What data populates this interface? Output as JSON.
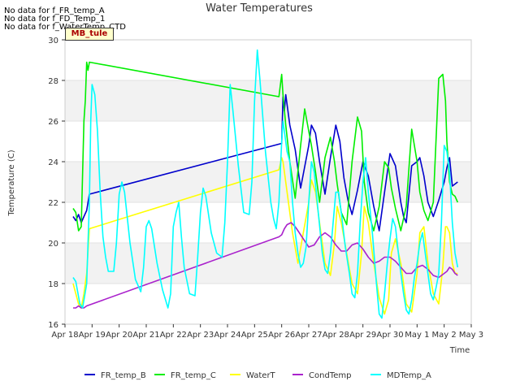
{
  "notes": [
    "No data for f_FR_temp_A",
    "No data for f_FD_Temp_1",
    "No data for f_WaterTemp_CTD"
  ],
  "badge": "MB_tule",
  "chart_data": {
    "type": "line",
    "title": "Water Temperatures",
    "xlabel": "Time",
    "ylabel": "Temperature (C)",
    "xlim": [
      0,
      15
    ],
    "ylim": [
      16,
      30
    ],
    "x_tick_values": [
      0,
      1,
      2,
      3,
      4,
      5,
      6,
      7,
      8,
      9,
      10,
      11,
      12,
      13,
      14,
      15
    ],
    "x_tick_labels": [
      "Apr 18",
      "Apr 19",
      "Apr 20",
      "Apr 21",
      "Apr 22",
      "Apr 23",
      "Apr 24",
      "Apr 25",
      "Apr 26",
      "Apr 27",
      "Apr 28",
      "Apr 29",
      "Apr 30",
      "May 1",
      "May 2",
      "May 3"
    ],
    "y_ticks": [
      16,
      18,
      20,
      22,
      24,
      26,
      28,
      30
    ],
    "bands": [
      [
        18,
        20
      ],
      [
        22,
        24
      ],
      [
        26,
        28
      ]
    ],
    "legend_position": "bottom",
    "series": [
      {
        "name": "FR_temp_B",
        "color": "#0000cc",
        "x": [
          0.3,
          0.4,
          0.5,
          0.6,
          0.7,
          0.8,
          0.9,
          8.0,
          8.05,
          8.1,
          8.15,
          8.3,
          8.5,
          8.7,
          9.0,
          9.1,
          9.25,
          9.4,
          9.6,
          9.8,
          10.0,
          10.15,
          10.3,
          10.45,
          10.6,
          10.8,
          11.0,
          11.2,
          11.4,
          11.6,
          11.8,
          12.0,
          12.2,
          12.4,
          12.5,
          12.6,
          12.8,
          13.0,
          13.1,
          13.25,
          13.4,
          13.6,
          13.8,
          14.0,
          14.1,
          14.2,
          14.3,
          14.4,
          14.5
        ],
        "y": [
          21.3,
          21.1,
          21.4,
          21.0,
          21.3,
          21.6,
          22.4,
          24.9,
          27.2,
          26.5,
          27.3,
          25.8,
          24.6,
          22.7,
          24.8,
          25.8,
          25.4,
          24.0,
          22.4,
          24.2,
          25.8,
          25.0,
          23.2,
          22.1,
          21.4,
          22.6,
          24.0,
          23.3,
          21.8,
          20.6,
          22.5,
          24.4,
          23.8,
          22.0,
          21.3,
          21.0,
          23.8,
          24.0,
          24.2,
          23.3,
          22.0,
          21.3,
          22.1,
          23.0,
          23.7,
          24.2,
          22.8,
          22.9,
          23.0
        ]
      },
      {
        "name": "FR_temp_C",
        "color": "#00ee00",
        "x": [
          0.3,
          0.4,
          0.5,
          0.6,
          0.7,
          0.75,
          0.8,
          0.85,
          0.9,
          7.9,
          8.0,
          8.05,
          8.15,
          8.3,
          8.5,
          8.7,
          8.85,
          9.0,
          9.1,
          9.25,
          9.4,
          9.6,
          9.8,
          9.95,
          10.05,
          10.2,
          10.4,
          10.6,
          10.8,
          10.95,
          11.05,
          11.2,
          11.4,
          11.6,
          11.8,
          11.95,
          12.05,
          12.2,
          12.4,
          12.6,
          12.8,
          13.0,
          13.1,
          13.25,
          13.4,
          13.6,
          13.8,
          13.95,
          14.05,
          14.1,
          14.2,
          14.3,
          14.4,
          14.5
        ],
        "y": [
          21.7,
          21.5,
          20.6,
          20.8,
          26.0,
          27.0,
          28.9,
          28.5,
          28.9,
          27.2,
          28.3,
          27.3,
          25.8,
          24.0,
          22.2,
          24.8,
          26.6,
          25.5,
          24.8,
          23.5,
          22.0,
          24.2,
          25.2,
          24.0,
          22.9,
          21.5,
          20.9,
          24.0,
          26.2,
          25.5,
          23.0,
          21.5,
          20.6,
          21.8,
          24.0,
          23.7,
          22.7,
          21.7,
          20.6,
          21.8,
          25.6,
          24.0,
          22.5,
          21.6,
          21.1,
          22.0,
          28.1,
          28.3,
          27.0,
          25.0,
          23.0,
          22.4,
          22.3,
          22.0
        ]
      },
      {
        "name": "WaterT",
        "color": "#ffff00",
        "x": [
          0.3,
          0.4,
          0.5,
          0.6,
          0.7,
          0.8,
          0.9,
          7.9,
          8.0,
          8.05,
          8.1,
          8.25,
          8.4,
          8.6,
          8.8,
          9.0,
          9.1,
          9.25,
          9.4,
          9.6,
          9.8,
          9.95,
          10.05,
          10.2,
          10.4,
          10.6,
          10.8,
          10.95,
          11.05,
          11.2,
          11.4,
          11.6,
          11.8,
          11.95,
          12.05,
          12.2,
          12.4,
          12.6,
          12.8,
          13.0,
          13.1,
          13.25,
          13.4,
          13.6,
          13.8,
          13.95,
          14.05,
          14.1,
          14.2,
          14.3,
          14.4,
          14.5
        ],
        "y": [
          18.0,
          17.5,
          17.0,
          16.8,
          17.5,
          18.5,
          20.7,
          23.6,
          24.2,
          24.0,
          23.5,
          22.0,
          20.5,
          19.0,
          20.5,
          22.0,
          23.1,
          22.5,
          21.0,
          19.0,
          18.4,
          20.0,
          21.8,
          21.0,
          19.5,
          18.0,
          17.5,
          19.5,
          21.8,
          21.0,
          19.0,
          17.3,
          16.5,
          17.2,
          19.5,
          20.2,
          19.0,
          17.0,
          16.6,
          18.5,
          20.5,
          20.8,
          19.0,
          17.5,
          17.0,
          18.8,
          20.8,
          20.8,
          20.5,
          19.0,
          18.5,
          18.5
        ]
      },
      {
        "name": "CondTemp",
        "color": "#aa22cc",
        "x": [
          0.3,
          0.4,
          0.5,
          0.6,
          0.7,
          0.8,
          7.9,
          8.0,
          8.1,
          8.2,
          8.35,
          8.5,
          8.6,
          8.8,
          9.0,
          9.2,
          9.4,
          9.6,
          9.8,
          10.0,
          10.2,
          10.4,
          10.6,
          10.8,
          11.0,
          11.2,
          11.4,
          11.6,
          11.8,
          12.0,
          12.2,
          12.4,
          12.6,
          12.8,
          13.0,
          13.2,
          13.4,
          13.6,
          13.8,
          14.0,
          14.1,
          14.2,
          14.3,
          14.4,
          14.5
        ],
        "y": [
          16.8,
          16.8,
          16.9,
          16.8,
          16.8,
          16.9,
          20.3,
          20.4,
          20.7,
          20.9,
          21.0,
          20.8,
          20.6,
          20.2,
          19.8,
          19.9,
          20.3,
          20.5,
          20.3,
          19.9,
          19.6,
          19.6,
          19.9,
          20.0,
          19.7,
          19.3,
          19.0,
          19.1,
          19.3,
          19.3,
          19.1,
          18.8,
          18.5,
          18.5,
          18.8,
          18.9,
          18.7,
          18.4,
          18.3,
          18.5,
          18.6,
          18.8,
          18.7,
          18.5,
          18.4
        ]
      },
      {
        "name": "MDTemp_A",
        "color": "#00ffff",
        "x": [
          0.3,
          0.4,
          0.55,
          0.65,
          0.8,
          0.9,
          0.95,
          1.0,
          1.1,
          1.2,
          1.3,
          1.4,
          1.5,
          1.6,
          1.8,
          1.9,
          2.0,
          2.1,
          2.2,
          2.4,
          2.6,
          2.8,
          2.9,
          3.0,
          3.1,
          3.2,
          3.4,
          3.6,
          3.8,
          3.9,
          4.0,
          4.1,
          4.2,
          4.3,
          4.4,
          4.6,
          4.8,
          4.9,
          5.0,
          5.1,
          5.2,
          5.4,
          5.6,
          5.8,
          5.9,
          6.0,
          6.1,
          6.2,
          6.4,
          6.6,
          6.8,
          6.9,
          7.0,
          7.1,
          7.2,
          7.4,
          7.6,
          7.7,
          7.8,
          7.9,
          8.0,
          8.05,
          8.1,
          8.2,
          8.3,
          8.4,
          8.5,
          8.6,
          8.7,
          8.8,
          8.9,
          9.0,
          9.1,
          9.2,
          9.35,
          9.5,
          9.6,
          9.7,
          9.8,
          9.9,
          10.0,
          10.1,
          10.2,
          10.35,
          10.5,
          10.6,
          10.7,
          10.8,
          10.9,
          11.0,
          11.1,
          11.2,
          11.35,
          11.5,
          11.6,
          11.7,
          11.8,
          11.9,
          12.0,
          12.1,
          12.2,
          12.35,
          12.5,
          12.6,
          12.7,
          12.8,
          12.9,
          13.0,
          13.1,
          13.2,
          13.35,
          13.5,
          13.6,
          13.7,
          13.8,
          13.9,
          14.0,
          14.1,
          14.2,
          14.3,
          14.4,
          14.5
        ],
        "y": [
          18.3,
          18.1,
          17.0,
          16.8,
          18.0,
          22.0,
          26.0,
          27.8,
          27.3,
          25.5,
          22.5,
          20.3,
          19.3,
          18.6,
          18.6,
          20.0,
          22.4,
          23.0,
          22.5,
          20.0,
          18.2,
          17.6,
          18.8,
          20.8,
          21.1,
          20.7,
          19.0,
          17.7,
          16.8,
          17.5,
          20.8,
          21.5,
          22.0,
          20.3,
          18.8,
          17.5,
          17.4,
          19.3,
          21.5,
          22.7,
          22.3,
          20.5,
          19.5,
          19.3,
          21.0,
          24.0,
          27.8,
          26.5,
          23.8,
          21.5,
          21.4,
          23.0,
          27.0,
          29.5,
          28.0,
          24.5,
          22.0,
          21.2,
          20.7,
          22.0,
          25.0,
          26.0,
          25.5,
          24.5,
          24.0,
          22.0,
          20.5,
          19.5,
          18.8,
          19.0,
          19.8,
          22.0,
          24.0,
          23.5,
          21.5,
          19.5,
          18.7,
          18.5,
          19.5,
          21.0,
          22.5,
          22.5,
          21.5,
          19.8,
          18.5,
          17.5,
          17.3,
          18.5,
          21.0,
          23.0,
          24.2,
          22.5,
          20.5,
          18.0,
          16.5,
          16.3,
          17.5,
          19.0,
          20.2,
          21.2,
          20.8,
          19.0,
          17.5,
          16.7,
          16.5,
          17.2,
          18.3,
          19.0,
          20.0,
          20.5,
          19.0,
          17.5,
          17.2,
          17.8,
          18.5,
          21.0,
          24.8,
          24.5,
          23.5,
          21.0,
          19.5,
          18.8
        ]
      }
    ]
  }
}
